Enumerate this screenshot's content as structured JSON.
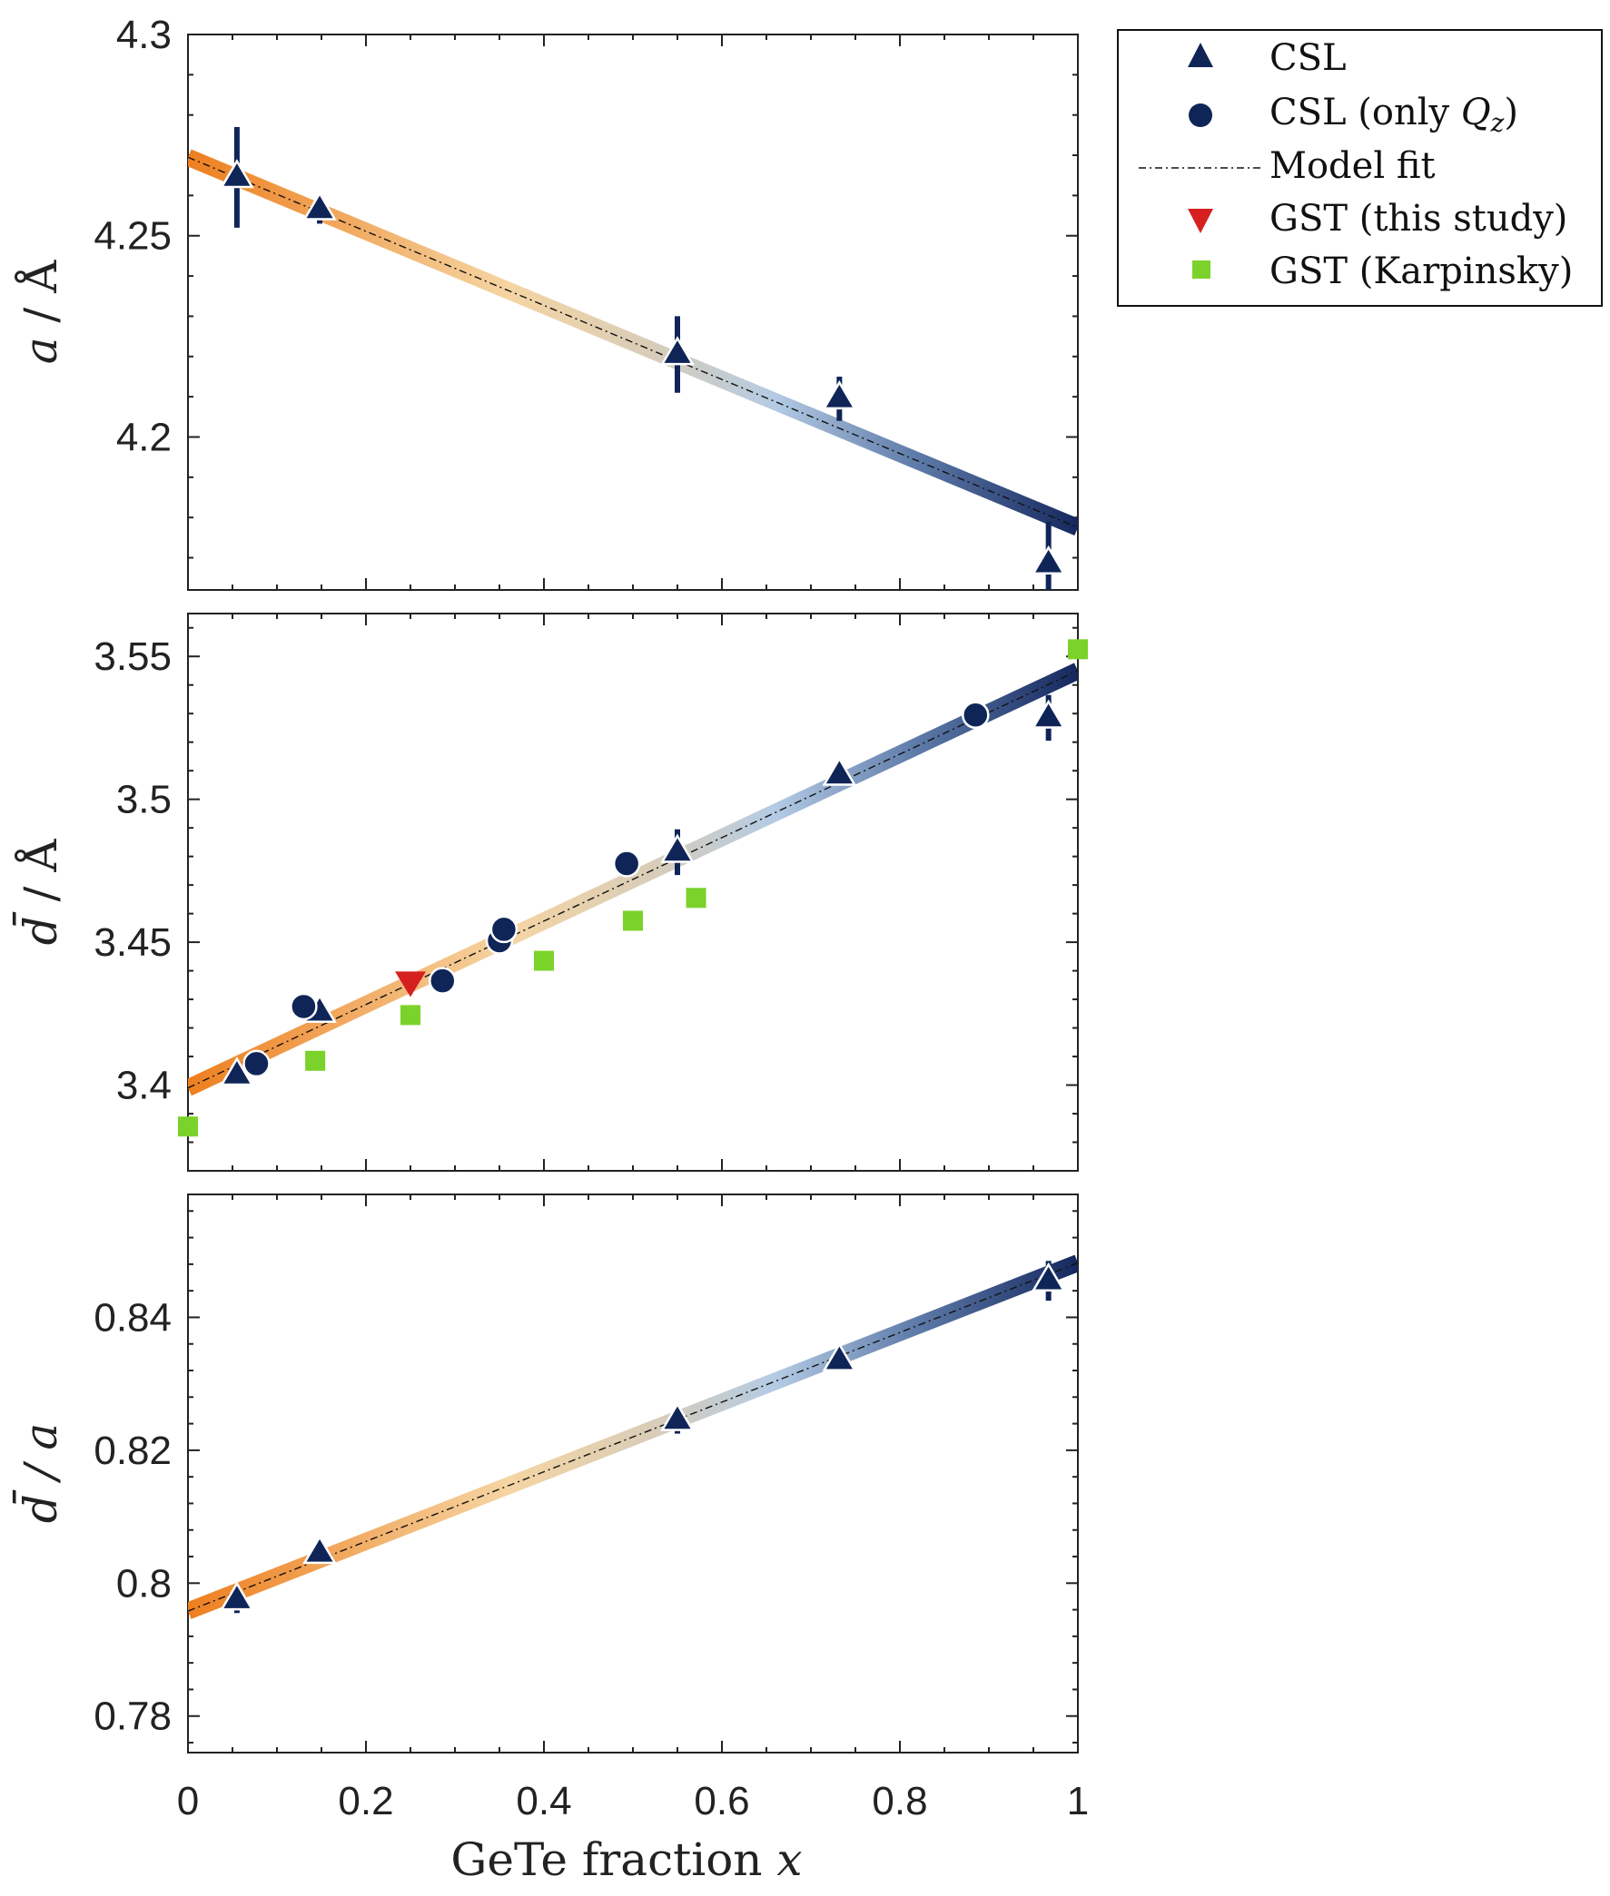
{
  "colors": {
    "csl": "#0f2557",
    "gst_this_study": "#d62020",
    "gst_karpinsky": "#7bd22a",
    "fit_start": "#ee7f1f",
    "fit_mid_light": "#f5d5a3",
    "fit_mid_blue": "#b4cbe4",
    "fit_end": "#15285e",
    "axis": "#222222"
  },
  "legend": {
    "items": [
      {
        "key": "csl",
        "label": "CSL",
        "marker": "triangle-up-icon"
      },
      {
        "key": "csl_qz",
        "label": "CSL (only ",
        "label_q": "Q",
        "label_sub": "z",
        "label_end": ")",
        "marker": "circle-icon"
      },
      {
        "key": "fit",
        "label": "Model fit",
        "marker": "dash-dot-line-icon"
      },
      {
        "key": "gst_this",
        "label": "GST (this study)",
        "marker": "triangle-down-icon"
      },
      {
        "key": "gst_karp",
        "label": "GST (Karpinsky)",
        "marker": "square-icon"
      }
    ]
  },
  "chart_data": [
    {
      "type": "scatter",
      "panel": "top",
      "ylabel_var": "a",
      "ylabel_unit": " / Å",
      "xlim": [
        0,
        1
      ],
      "ylim": [
        4.162,
        4.3
      ],
      "yticks": [
        4.2,
        4.25,
        4.3
      ],
      "ytick_labels": [
        "4.2",
        "4.25",
        "4.3"
      ],
      "fit": {
        "x": [
          0,
          1
        ],
        "y": [
          4.2695,
          4.1775
        ]
      },
      "series": [
        {
          "name": "CSL",
          "marker": "triangle-up",
          "x": [
            0.055,
            0.148,
            0.55,
            0.732,
            0.967
          ],
          "y": [
            4.2645,
            4.2565,
            4.2205,
            4.2095,
            4.1685
          ],
          "err": [
            0.0125,
            0.0035,
            0.0095,
            0.0055,
            0.0105
          ]
        }
      ]
    },
    {
      "type": "scatter",
      "panel": "middle",
      "ylabel_var": "d̄",
      "ylabel_unit": " / Å",
      "xlim": [
        0,
        1
      ],
      "ylim": [
        3.37,
        3.565
      ],
      "yticks": [
        3.4,
        3.45,
        3.5,
        3.55
      ],
      "ytick_labels": [
        "3.4",
        "3.45",
        "3.5",
        "3.55"
      ],
      "fit": {
        "x": [
          0,
          1
        ],
        "y": [
          3.399,
          3.545
        ]
      },
      "series": [
        {
          "name": "CSL",
          "marker": "triangle-up",
          "x": [
            0.055,
            0.148,
            0.55,
            0.732,
            0.967
          ],
          "y": [
            3.4035,
            3.4255,
            3.4815,
            3.5085,
            3.5285
          ],
          "err": [
            0.002,
            0.002,
            0.008,
            0.002,
            0.008
          ]
        },
        {
          "name": "CSL (only Qz)",
          "marker": "circle",
          "x": [
            0.077,
            0.13,
            0.286,
            0.35,
            0.355,
            0.493,
            0.885
          ],
          "y": [
            3.4075,
            3.4275,
            3.4365,
            3.4505,
            3.4545,
            3.4775,
            3.5295
          ]
        },
        {
          "name": "GST (this study)",
          "marker": "triangle-down",
          "x": [
            0.25
          ],
          "y": [
            3.4365
          ]
        },
        {
          "name": "GST (Karpinsky)",
          "marker": "square",
          "x": [
            0.0,
            0.143,
            0.25,
            0.4,
            0.5,
            0.571,
            1.0
          ],
          "y": [
            3.3855,
            3.4085,
            3.4245,
            3.4435,
            3.4575,
            3.4655,
            3.5525
          ]
        }
      ]
    },
    {
      "type": "scatter",
      "panel": "bottom",
      "ylabel_var": "d̄",
      "ylabel_unit": " / a",
      "xlim": [
        0,
        1
      ],
      "ylim": [
        0.7745,
        0.8585
      ],
      "yticks": [
        0.78,
        0.8,
        0.82,
        0.84
      ],
      "ytick_labels": [
        "0.78",
        "0.8",
        "0.82",
        "0.84"
      ],
      "xticks": [
        0,
        0.2,
        0.4,
        0.6,
        0.8,
        1
      ],
      "xtick_labels": [
        "0",
        "0.2",
        "0.4",
        "0.6",
        "0.8",
        "1"
      ],
      "xlabel": "GeTe fraction ",
      "xlabel_var": "x",
      "fit": {
        "x": [
          0,
          1
        ],
        "y": [
          0.7958,
          0.8482
        ]
      },
      "series": [
        {
          "name": "CSL",
          "marker": "triangle-up",
          "x": [
            0.055,
            0.148,
            0.55,
            0.732,
            0.967
          ],
          "y": [
            0.7975,
            0.8045,
            0.8245,
            0.8335,
            0.8455
          ],
          "err": [
            0.002,
            0.0005,
            0.002,
            0.0005,
            0.003
          ]
        }
      ]
    }
  ]
}
